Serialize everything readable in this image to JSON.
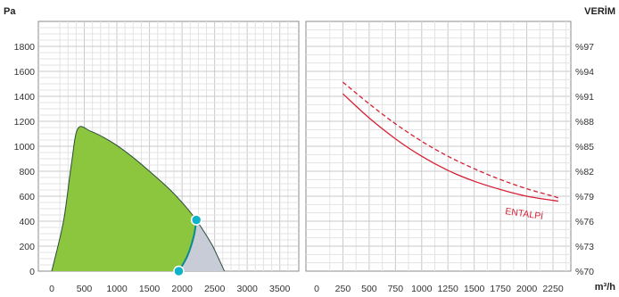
{
  "chart_data": [
    {
      "type": "area",
      "ylabel": "Pa",
      "xlim": [
        0,
        3750
      ],
      "ylim": [
        0,
        2000
      ],
      "x_ticks": [
        "0",
        "500",
        "1000",
        "1500",
        "2000",
        "2500",
        "3000",
        "3500"
      ],
      "y_ticks": [
        "0",
        "200",
        "400",
        "600",
        "800",
        "1000",
        "1200",
        "1400",
        "1600",
        "1800"
      ],
      "grid": true,
      "colors": {
        "operating_area": "#8cc63f",
        "extended_area": "#c8ccd6",
        "boundary": "#2b4a3c",
        "marker": "#0fb2c8",
        "working_line": "#0a8a8f"
      },
      "series": [
        {
          "values": [
            [
              0,
              0
            ],
            [
              180,
              400
            ],
            [
              300,
              850
            ],
            [
              400,
              1140
            ],
            [
              600,
              1120
            ],
            [
              900,
              1040
            ],
            [
              1200,
              930
            ],
            [
              1500,
              800
            ],
            [
              1800,
              660
            ],
            [
              2050,
              520
            ],
            [
              2230,
              400
            ],
            [
              2450,
              220
            ],
            [
              2580,
              80
            ],
            [
              2650,
              0
            ]
          ]
        },
        {
          "values": [
            [
              1950,
              0
            ],
            [
              2080,
              120
            ],
            [
              2180,
              280
            ],
            [
              2220,
              410
            ]
          ]
        }
      ],
      "markers": [
        [
          1950,
          0
        ],
        [
          2220,
          410
        ]
      ]
    },
    {
      "type": "line",
      "ylabel": "VERİM",
      "xlabel": "m³/h",
      "xlim": [
        0,
        2500
      ],
      "ylim": [
        70,
        100
      ],
      "x_ticks": [
        "0",
        "250",
        "500",
        "750",
        "1000",
        "1250",
        "1500",
        "1750",
        "2000",
        "2250"
      ],
      "y_ticks": [
        "%70",
        "%73",
        "%76",
        "%79",
        "%82",
        "%85",
        "%88",
        "%91",
        "%94",
        "%97"
      ],
      "grid": true,
      "annotations": [
        "ENTALPİ"
      ],
      "series": [
        {
          "style": "solid",
          "color": "#d62035",
          "x": [
            250,
            500,
            750,
            1000,
            1250,
            1500,
            1750,
            2000,
            2250,
            2300
          ],
          "values": [
            91.3,
            88.4,
            85.9,
            83.8,
            82.1,
            80.8,
            79.8,
            79.0,
            78.5,
            78.4
          ]
        },
        {
          "style": "dashed",
          "color": "#d62035",
          "x": [
            250,
            500,
            750,
            1000,
            1250,
            1500,
            1750,
            2000,
            2250,
            2300
          ],
          "values": [
            92.7,
            90.1,
            87.7,
            85.6,
            83.8,
            82.3,
            81.0,
            79.9,
            79.0,
            78.8
          ]
        }
      ]
    }
  ]
}
